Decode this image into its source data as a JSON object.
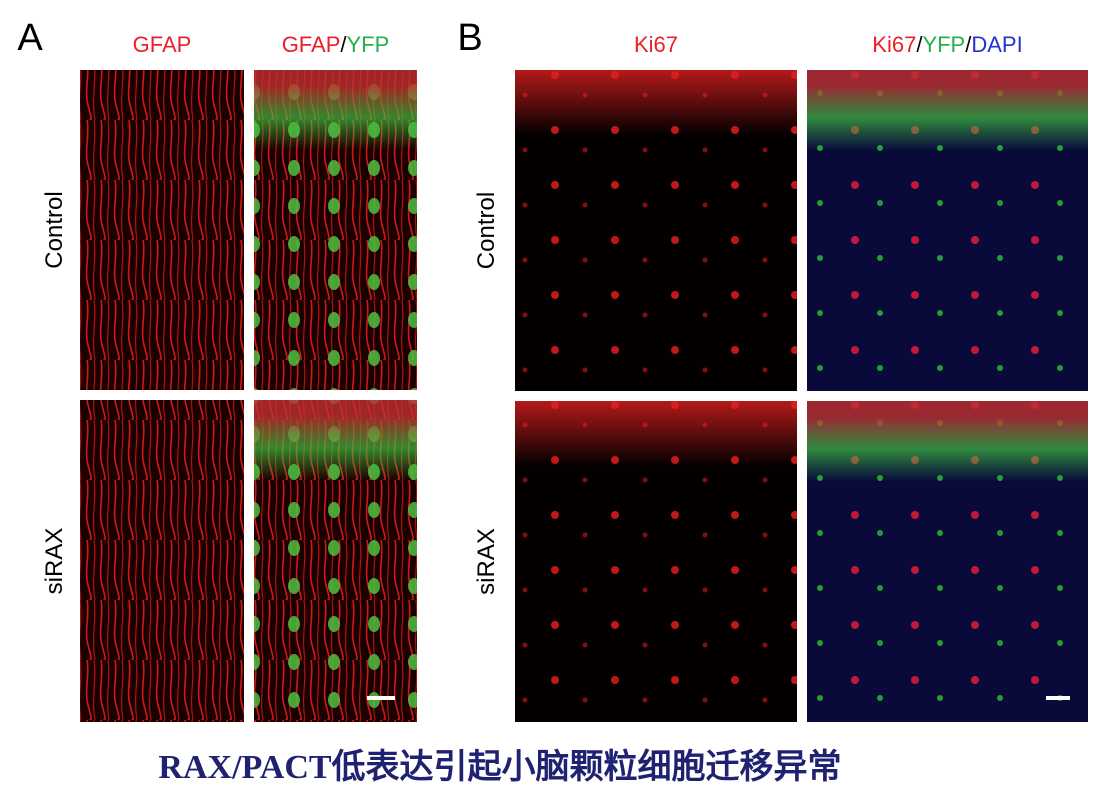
{
  "panels": [
    {
      "letter": "A",
      "columns": [
        {
          "parts": [
            {
              "text": "GFAP",
              "color": "#e8202a"
            }
          ]
        },
        {
          "parts": [
            {
              "text": "GFAP",
              "color": "#e8202a"
            },
            {
              "text": "/",
              "color": "#000000"
            },
            {
              "text": "YFP",
              "color": "#22b14c"
            }
          ]
        }
      ],
      "rows": [
        "Control",
        "siRAX"
      ]
    },
    {
      "letter": "B",
      "columns": [
        {
          "parts": [
            {
              "text": "Ki67",
              "color": "#e8202a"
            }
          ]
        },
        {
          "parts": [
            {
              "text": "Ki67",
              "color": "#e8202a"
            },
            {
              "text": "/",
              "color": "#000000"
            },
            {
              "text": "YFP",
              "color": "#22b14c"
            },
            {
              "text": "/",
              "color": "#000000"
            },
            {
              "text": "DAPI",
              "color": "#2233cc"
            }
          ]
        }
      ],
      "rows": [
        "Control",
        "siRAX"
      ]
    }
  ],
  "caption": "RAX/PACT低表达引起小脑颗粒细胞迁移异常"
}
